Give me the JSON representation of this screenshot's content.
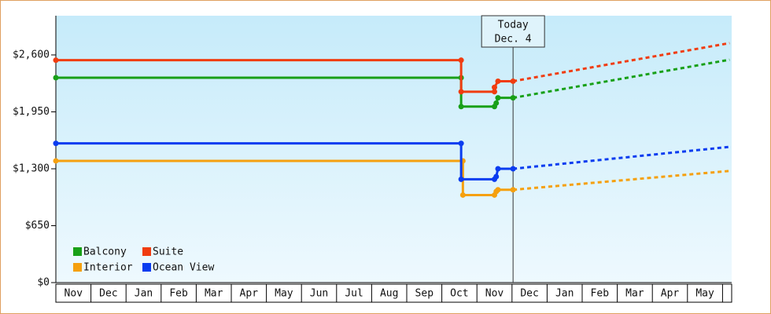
{
  "chart_data": {
    "type": "line",
    "ylim": [
      0,
      3048
    ],
    "yticks": [
      {
        "value": 0,
        "label": "$0"
      },
      {
        "value": 650,
        "label": "$650"
      },
      {
        "value": 1300,
        "label": "$1,300"
      },
      {
        "value": 1950,
        "label": "$1,950"
      },
      {
        "value": 2600,
        "label": "$2,600"
      }
    ],
    "xlim": [
      0,
      19.26
    ],
    "xticks": [
      {
        "value": 0.5,
        "label": "Nov"
      },
      {
        "value": 1.5,
        "label": "Dec"
      },
      {
        "value": 2.5,
        "label": "Jan"
      },
      {
        "value": 3.5,
        "label": "Feb"
      },
      {
        "value": 4.5,
        "label": "Mar"
      },
      {
        "value": 5.5,
        "label": "Apr"
      },
      {
        "value": 6.5,
        "label": "May"
      },
      {
        "value": 7.5,
        "label": "Jun"
      },
      {
        "value": 8.5,
        "label": "Jul"
      },
      {
        "value": 9.5,
        "label": "Aug"
      },
      {
        "value": 10.5,
        "label": "Sep"
      },
      {
        "value": 11.5,
        "label": "Oct"
      },
      {
        "value": 12.5,
        "label": "Nov"
      },
      {
        "value": 13.5,
        "label": "Dec"
      },
      {
        "value": 14.5,
        "label": "Jan"
      },
      {
        "value": 15.5,
        "label": "Feb"
      },
      {
        "value": 16.5,
        "label": "Mar"
      },
      {
        "value": 17.5,
        "label": "Apr"
      },
      {
        "value": 18.5,
        "label": "May"
      }
    ],
    "annotation": {
      "x": 13.03,
      "lines": [
        "Today",
        "Dec. 4"
      ]
    },
    "series": [
      {
        "name": "Balcony",
        "color": "#18a018",
        "x": [
          0,
          11.55,
          11.55,
          12.5,
          12.55,
          12.6,
          13.03
        ],
        "values": [
          2340,
          2340,
          2010,
          2010,
          2050,
          2110,
          2110
        ],
        "forecast_x": [
          13.03,
          19.2
        ],
        "forecast_values": [
          2110,
          2545
        ]
      },
      {
        "name": "Suite",
        "color": "#f03c10",
        "x": [
          0,
          11.55,
          11.55,
          12.5,
          12.5,
          12.6,
          13.03
        ],
        "values": [
          2540,
          2540,
          2180,
          2180,
          2230,
          2300,
          2300
        ],
        "forecast_x": [
          13.03,
          19.2
        ],
        "forecast_values": [
          2300,
          2735
        ]
      },
      {
        "name": "Interior",
        "color": "#f5a00f",
        "x": [
          0,
          11.6,
          11.6,
          12.5,
          12.55,
          12.6,
          13.03
        ],
        "values": [
          1390,
          1390,
          1000,
          1000,
          1040,
          1060,
          1060
        ],
        "forecast_x": [
          13.03,
          19.2
        ],
        "forecast_values": [
          1060,
          1275
        ]
      },
      {
        "name": "Ocean View",
        "color": "#0a3cf0",
        "x": [
          0,
          11.55,
          11.55,
          12.5,
          12.55,
          12.6,
          13.03
        ],
        "values": [
          1590,
          1590,
          1180,
          1180,
          1210,
          1300,
          1300
        ],
        "forecast_x": [
          13.03,
          19.2
        ],
        "forecast_values": [
          1300,
          1550
        ]
      }
    ]
  }
}
